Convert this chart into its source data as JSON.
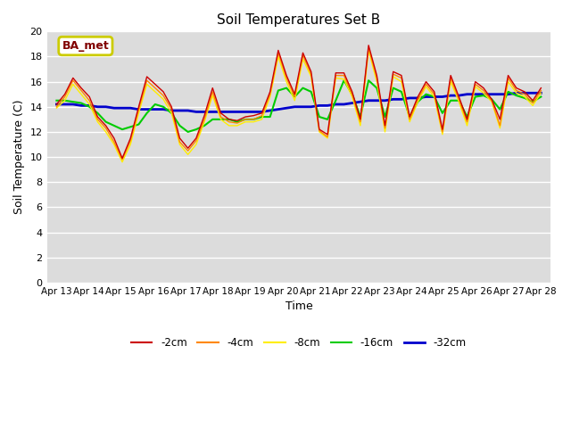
{
  "title": "Soil Temperatures Set B",
  "xlabel": "Time",
  "ylabel": "Soil Temperature (C)",
  "ylim": [
    0,
    20
  ],
  "yticks": [
    0,
    2,
    4,
    6,
    8,
    10,
    12,
    14,
    16,
    18,
    20
  ],
  "x_labels": [
    "Apr 13",
    "Apr 14",
    "Apr 15",
    "Apr 16",
    "Apr 17",
    "Apr 18",
    "Apr 19",
    "Apr 20",
    "Apr 21",
    "Apr 22",
    "Apr 23",
    "Apr 24",
    "Apr 25",
    "Apr 26",
    "Apr 27",
    "Apr 28"
  ],
  "annotation_text": "BA_met",
  "bg_color": "#dcdcdc",
  "series": {
    "neg2cm": {
      "label": "-2cm",
      "color": "#cc0000",
      "linewidth": 1.0,
      "values": [
        14.2,
        15.0,
        16.3,
        15.5,
        14.8,
        13.2,
        12.5,
        11.5,
        9.9,
        11.5,
        14.0,
        16.4,
        15.8,
        15.2,
        14.0,
        11.5,
        10.7,
        11.5,
        13.3,
        15.5,
        13.5,
        13.0,
        12.9,
        13.2,
        13.3,
        13.5,
        15.2,
        18.5,
        16.5,
        15.0,
        18.3,
        16.8,
        12.2,
        11.8,
        16.7,
        16.7,
        15.2,
        13.0,
        18.9,
        16.5,
        12.5,
        16.8,
        16.5,
        13.2,
        14.8,
        16.0,
        15.2,
        12.2,
        16.5,
        14.8,
        13.0,
        16.0,
        15.5,
        14.6,
        13.0,
        16.5,
        15.5,
        15.2,
        14.5,
        15.5
      ]
    },
    "neg4cm": {
      "label": "-4cm",
      "color": "#ff8800",
      "linewidth": 1.0,
      "values": [
        14.0,
        14.8,
        16.1,
        15.3,
        14.5,
        13.0,
        12.3,
        11.2,
        9.8,
        11.3,
        13.8,
        16.1,
        15.5,
        14.9,
        13.8,
        11.2,
        10.5,
        11.3,
        13.0,
        15.2,
        13.2,
        12.8,
        12.7,
        13.0,
        13.0,
        13.3,
        15.0,
        18.3,
        16.3,
        14.8,
        18.1,
        16.6,
        12.1,
        11.6,
        16.5,
        16.5,
        15.0,
        12.8,
        18.7,
        16.3,
        12.3,
        16.6,
        16.3,
        13.0,
        14.6,
        15.8,
        15.0,
        12.0,
        16.3,
        14.6,
        12.8,
        15.8,
        15.3,
        14.5,
        12.5,
        16.3,
        15.3,
        15.0,
        14.3,
        15.3
      ]
    },
    "neg8cm": {
      "label": "-8cm",
      "color": "#ffee00",
      "linewidth": 1.0,
      "values": [
        13.9,
        14.5,
        15.8,
        15.0,
        14.2,
        12.8,
        12.0,
        11.0,
        9.6,
        11.0,
        13.5,
        15.8,
        15.2,
        14.6,
        13.5,
        11.0,
        10.2,
        11.0,
        12.8,
        14.9,
        13.0,
        12.5,
        12.5,
        12.8,
        12.8,
        13.0,
        14.8,
        18.0,
        16.0,
        14.5,
        17.8,
        16.4,
        12.0,
        11.5,
        16.3,
        16.2,
        14.8,
        12.5,
        18.5,
        16.0,
        12.0,
        16.4,
        16.0,
        12.8,
        14.4,
        15.6,
        14.8,
        11.8,
        16.0,
        14.4,
        12.5,
        15.6,
        15.1,
        14.4,
        12.3,
        16.0,
        15.1,
        14.8,
        14.1,
        15.1
      ]
    },
    "neg16cm": {
      "label": "-16cm",
      "color": "#00cc00",
      "linewidth": 1.5,
      "values": [
        14.5,
        14.5,
        14.4,
        14.3,
        14.0,
        13.5,
        12.8,
        12.5,
        12.2,
        12.4,
        12.6,
        13.5,
        14.2,
        14.0,
        13.5,
        12.5,
        12.0,
        12.2,
        12.5,
        13.0,
        13.0,
        13.0,
        12.8,
        13.0,
        13.0,
        13.2,
        13.2,
        15.3,
        15.5,
        14.8,
        15.5,
        15.2,
        13.2,
        13.0,
        14.5,
        16.1,
        15.0,
        13.2,
        16.1,
        15.5,
        13.2,
        15.5,
        15.2,
        13.2,
        14.4,
        15.0,
        14.8,
        13.5,
        14.5,
        14.5,
        13.2,
        14.8,
        14.9,
        14.6,
        13.8,
        15.2,
        14.9,
        14.7,
        14.4,
        14.8
      ]
    },
    "neg32cm": {
      "label": "-32cm",
      "color": "#0000cc",
      "linewidth": 2.0,
      "values": [
        14.2,
        14.2,
        14.2,
        14.1,
        14.1,
        14.0,
        14.0,
        13.9,
        13.9,
        13.9,
        13.8,
        13.8,
        13.8,
        13.8,
        13.7,
        13.7,
        13.7,
        13.6,
        13.6,
        13.6,
        13.6,
        13.6,
        13.6,
        13.6,
        13.6,
        13.6,
        13.7,
        13.8,
        13.9,
        14.0,
        14.0,
        14.0,
        14.1,
        14.1,
        14.2,
        14.2,
        14.3,
        14.4,
        14.5,
        14.5,
        14.5,
        14.6,
        14.6,
        14.7,
        14.7,
        14.8,
        14.8,
        14.8,
        14.9,
        14.9,
        15.0,
        15.0,
        15.0,
        15.0,
        15.0,
        15.0,
        15.1,
        15.1,
        15.1,
        15.1
      ]
    }
  }
}
